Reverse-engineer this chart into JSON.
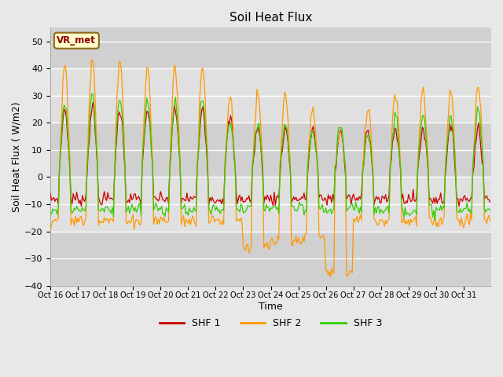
{
  "title": "Soil Heat Flux",
  "xlabel": "Time",
  "ylabel": "Soil Heat Flux ( W/m2)",
  "ylim": [
    -40,
    55
  ],
  "colors": {
    "SHF 1": "#cc0000",
    "SHF 2": "#ff9900",
    "SHF 3": "#33cc00"
  },
  "legend_label": "VR_met",
  "bg_outer": "#e8e8e8",
  "band_colors": [
    "#d0d0d0",
    "#e0e0e0",
    "#d0d0d0",
    "#e0e0e0",
    "#d0d0d0"
  ],
  "band_edges": [
    -40,
    -20,
    0,
    20,
    40,
    55
  ],
  "grid_color": "#ffffff",
  "xtick_labels": [
    "Oct 16",
    "Oct 17",
    "Oct 18",
    "Oct 19",
    "Oct 20",
    "Oct 21",
    "Oct 22",
    "Oct 23",
    "Oct 24",
    "Oct 25",
    "Oct 26",
    "Oct 27",
    "Oct 28",
    "Oct 29",
    "Oct 30",
    "Oct 31"
  ],
  "ytick_labels": [
    -40,
    -30,
    -20,
    -10,
    0,
    10,
    20,
    30,
    40,
    50
  ],
  "n_days": 16,
  "hours_per_day": 24
}
